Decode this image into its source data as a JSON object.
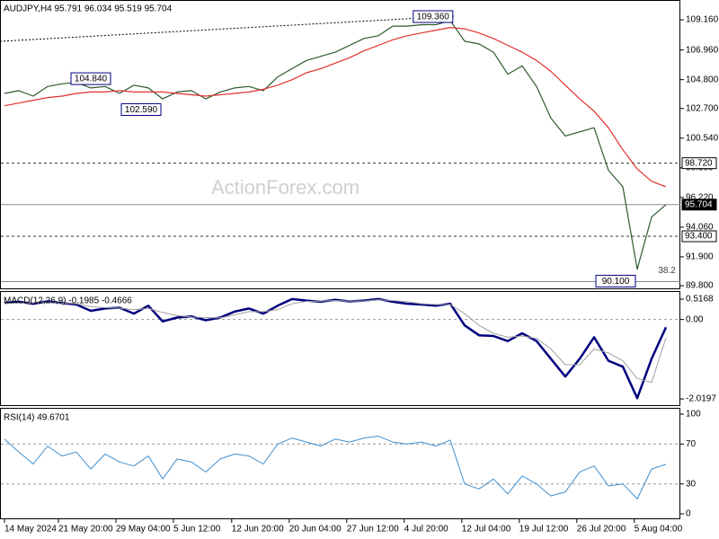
{
  "chart_data": [
    {
      "type": "line",
      "title": "AUDJPY,H4  95.791 96.034 95.519 95.704",
      "watermark": "ActionForex.com",
      "ylim": [
        89.54,
        110.6
      ],
      "yticks": [
        {
          "value": 109.16,
          "label": "109.160"
        },
        {
          "value": 106.96,
          "label": "106.960"
        },
        {
          "value": 104.8,
          "label": "104.800"
        },
        {
          "value": 102.7,
          "label": "102.700"
        },
        {
          "value": 100.54,
          "label": "100.540"
        },
        {
          "value": 98.38,
          "label": "98.380"
        },
        {
          "value": 96.22,
          "label": "96.220"
        },
        {
          "value": 94.06,
          "label": "94.060"
        },
        {
          "value": 91.9,
          "label": "91.900"
        },
        {
          "value": 89.8,
          "label": "89.800"
        }
      ],
      "grid": false,
      "series": [
        {
          "color": "#2d5a2d",
          "values": [
            103.8,
            104.0,
            103.6,
            104.3,
            104.5,
            104.6,
            104.2,
            104.3,
            103.8,
            104.4,
            104.2,
            103.4,
            103.9,
            104.0,
            103.4,
            103.9,
            104.2,
            104.3,
            104.0,
            105.0,
            105.6,
            106.2,
            106.5,
            106.8,
            107.3,
            107.8,
            108.0,
            108.7,
            108.7,
            108.8,
            108.8,
            109.1,
            107.6,
            107.4,
            106.8,
            105.2,
            105.8,
            104.3,
            102.0,
            100.7,
            101.0,
            101.3,
            98.2,
            97.0,
            91.0,
            94.8,
            95.704
          ]
        },
        {
          "color": "#e0302f",
          "values": [
            102.9,
            103.1,
            103.3,
            103.5,
            103.6,
            103.8,
            103.9,
            103.9,
            104.0,
            103.9,
            103.9,
            103.9,
            103.8,
            103.7,
            103.6,
            103.7,
            103.8,
            103.9,
            104.1,
            104.4,
            104.8,
            105.3,
            105.6,
            106.0,
            106.4,
            106.9,
            107.3,
            107.7,
            108.0,
            108.2,
            108.4,
            108.6,
            108.5,
            108.2,
            107.8,
            107.3,
            106.8,
            106.2,
            105.4,
            104.4,
            103.4,
            102.5,
            101.3,
            99.7,
            98.3,
            97.4,
            97.0
          ]
        }
      ],
      "levels": [
        {
          "value": 98.72,
          "label": "98.720",
          "style": "dashed"
        },
        {
          "value": 95.704,
          "label": "95.704",
          "style": "solid"
        },
        {
          "value": 93.4,
          "label": "93.400",
          "style": "dashed"
        },
        {
          "value": 90.1,
          "style": "solid"
        }
      ],
      "annotations": [
        {
          "text": "109.360",
          "x": 31.3,
          "y": 109.36,
          "boxed": true
        },
        {
          "text": "104.840",
          "x": 7.5,
          "y": 104.84,
          "boxed": true
        },
        {
          "text": "102.590",
          "x": 11,
          "y": 102.59,
          "boxed": true
        },
        {
          "text": "90.100",
          "x": 44,
          "y": 90.1,
          "boxed": true
        },
        {
          "text": "38.2",
          "x": 46.8,
          "y": 90.9,
          "boxed": false
        }
      ]
    },
    {
      "type": "line",
      "title": "MACD(12,26,9) -0.1985 -0.4666",
      "ylim": [
        -2.2,
        0.7
      ],
      "yticks": [
        0.5168,
        {
          "value": 0,
          "label": "0.00"
        },
        -2.0197
      ],
      "grid": "dashed",
      "series": [
        {
          "color": "#000080",
          "width": 2.5,
          "values": [
            0.42,
            0.45,
            0.4,
            0.46,
            0.42,
            0.38,
            0.22,
            0.28,
            0.3,
            0.15,
            0.35,
            -0.05,
            0.05,
            0.08,
            -0.02,
            0.05,
            0.2,
            0.28,
            0.15,
            0.35,
            0.52,
            0.48,
            0.45,
            0.5,
            0.46,
            0.48,
            0.52,
            0.45,
            0.4,
            0.38,
            0.35,
            0.4,
            -0.15,
            -0.4,
            -0.42,
            -0.55,
            -0.35,
            -0.55,
            -1.0,
            -1.45,
            -1.0,
            -0.45,
            -1.05,
            -1.2,
            -2.0,
            -1.0,
            -0.1985
          ]
        },
        {
          "color": "#a0a0a0",
          "width": 1,
          "values": [
            0.4,
            0.42,
            0.42,
            0.43,
            0.42,
            0.4,
            0.33,
            0.3,
            0.29,
            0.25,
            0.28,
            0.18,
            0.1,
            0.06,
            0.05,
            0.04,
            0.12,
            0.2,
            0.2,
            0.25,
            0.4,
            0.46,
            0.47,
            0.48,
            0.47,
            0.47,
            0.5,
            0.48,
            0.45,
            0.4,
            0.38,
            0.38,
            0.15,
            -0.15,
            -0.35,
            -0.45,
            -0.42,
            -0.48,
            -0.75,
            -1.15,
            -1.15,
            -0.75,
            -0.85,
            -1.05,
            -1.5,
            -1.6,
            -0.4666
          ]
        }
      ]
    },
    {
      "type": "line",
      "title": "RSI(14) 49.6701",
      "ylim": [
        -5.4,
        105.4
      ],
      "yticks": [
        100,
        70,
        30,
        0
      ],
      "grid": "dashed",
      "series": [
        {
          "color": "#3f8fcf",
          "width": 1,
          "values": [
            75,
            62,
            50,
            68,
            58,
            62,
            45,
            60,
            52,
            48,
            58,
            35,
            55,
            52,
            42,
            55,
            60,
            58,
            50,
            70,
            76,
            72,
            68,
            75,
            72,
            76,
            78,
            72,
            70,
            72,
            68,
            74,
            30,
            25,
            35,
            20,
            38,
            30,
            18,
            22,
            42,
            48,
            28,
            30,
            15,
            45,
            49.6701
          ]
        }
      ],
      "xticks": [
        {
          "value": 0,
          "label": "14 May 2024"
        },
        {
          "value": 3.75,
          "label": "21 May 20:00"
        },
        {
          "value": 7.75,
          "label": "29 May 04:00"
        },
        {
          "value": 11.75,
          "label": "5 Jun 12:00"
        },
        {
          "value": 15.8,
          "label": "12 Jun 20:00"
        },
        {
          "value": 19.8,
          "label": "20 Jun 04:00"
        },
        {
          "value": 23.8,
          "label": "27 Jun 12:00"
        },
        {
          "value": 27.8,
          "label": "4 Jul 20:00"
        },
        {
          "value": 31.8,
          "label": "12 Jul 04:00"
        },
        {
          "value": 35.8,
          "label": "19 Jul 12:00"
        },
        {
          "value": 39.8,
          "label": "26 Jul 20:00"
        },
        {
          "value": 43.8,
          "label": "5 Aug 04:00"
        }
      ]
    }
  ]
}
